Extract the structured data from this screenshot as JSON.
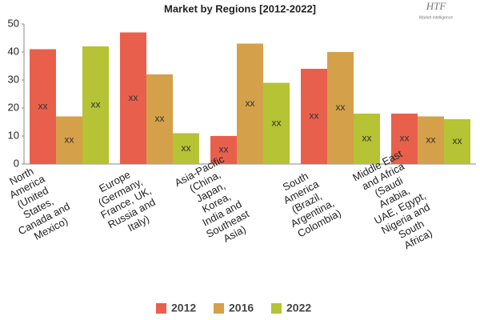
{
  "chart_data": {
    "type": "bar",
    "title": "Market by Regions [2012-2022]",
    "logo": {
      "name": "HTF",
      "tagline": "Market Intelligence"
    },
    "categories": [
      "North America (United States, Canada and Mexico)",
      "Europe (Germany, France, UK, Russia and Italy)",
      "Asia-Pacific (China, Japan, Korea, India and Southeast Asia)",
      "South America (Brazil, Argentina, Colombia)",
      "Middle East and Africa (Saudi Arabia, UAE, Egypt, Nigeria and South Africa)"
    ],
    "series": [
      {
        "name": "2012",
        "color": "#e8604c",
        "values": [
          41,
          47,
          10,
          34,
          18
        ],
        "value_labels": [
          "xx",
          "xx",
          "xx",
          "xx",
          "xx"
        ]
      },
      {
        "name": "2016",
        "color": "#d4a04a",
        "values": [
          17,
          32,
          43,
          40,
          17
        ],
        "value_labels": [
          "xx",
          "xx",
          "xx",
          "xx",
          "xx"
        ]
      },
      {
        "name": "2022",
        "color": "#b5c334",
        "values": [
          42,
          11,
          29,
          18,
          16
        ],
        "value_labels": [
          "xx",
          "xx",
          "xx",
          "xx",
          "xx"
        ]
      }
    ],
    "ylim": [
      0,
      50
    ],
    "yticks": [
      0,
      10,
      20,
      30,
      40,
      50
    ],
    "grid": false,
    "legend": "bottom"
  }
}
